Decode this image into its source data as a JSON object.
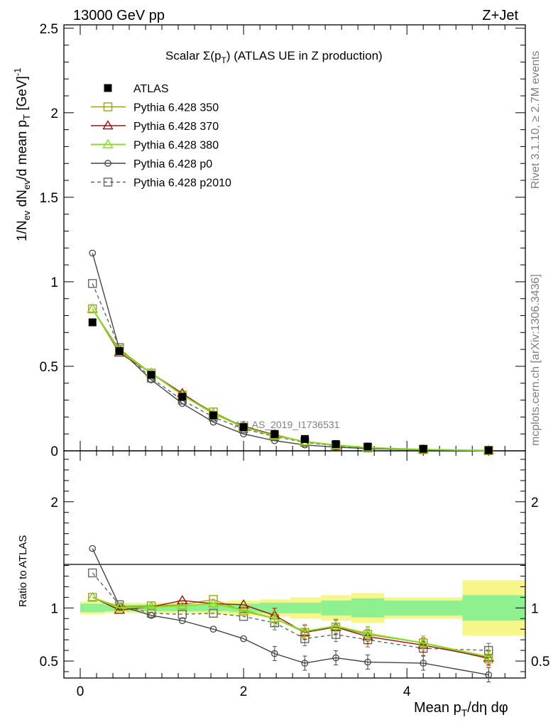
{
  "header": {
    "left": "13000 GeV pp",
    "right": "Z+Jet"
  },
  "side_labels": {
    "rivet": "Rivet 3.1.10, ≥ 2.7M events",
    "mcplots": "mcplots.cern.ch [arXiv:1306.3436]"
  },
  "watermark": "ATLAS_2019_I1736531",
  "chart_data": [
    {
      "type": "line",
      "title": "Scalar Σ(pT) (ATLAS UE in Z production)",
      "ylabel": "1/Nev dNev/d mean pT [GeV]^-1",
      "xlim": [
        -0.2,
        5.45
      ],
      "ylim": [
        0,
        2.52
      ],
      "yticks": [
        0,
        0.5,
        1,
        1.5,
        2,
        2.5
      ],
      "ytick_labels": [
        "0",
        "0.5",
        "1",
        "1.5",
        "2",
        "2.5"
      ],
      "x": [
        0.15,
        0.48,
        0.87,
        1.25,
        1.63,
        2.0,
        2.38,
        2.75,
        3.13,
        3.52,
        4.2,
        5.0
      ],
      "series": [
        {
          "name": "ATLAS",
          "color": "#000000",
          "marker": "filled-square",
          "values": [
            0.76,
            0.59,
            0.45,
            0.32,
            0.21,
            0.14,
            0.1,
            0.07,
            0.04,
            0.025,
            0.012,
            0.004
          ]
        },
        {
          "name": "Pythia 6.428 350",
          "color": "#a0a020",
          "marker": "open-square",
          "dash": false,
          "values": [
            0.84,
            0.6,
            0.46,
            0.33,
            0.23,
            0.14,
            0.09,
            0.054,
            0.033,
            0.019,
            0.008,
            0.002
          ]
        },
        {
          "name": "Pythia 6.428 370",
          "color": "#a01010",
          "marker": "open-triangle",
          "dash": false,
          "values": [
            0.84,
            0.58,
            0.46,
            0.34,
            0.22,
            0.145,
            0.095,
            0.054,
            0.033,
            0.018,
            0.008,
            0.002
          ]
        },
        {
          "name": "Pythia 6.428 380",
          "color": "#88dd22",
          "marker": "open-triangle",
          "dash": false,
          "values": [
            0.84,
            0.59,
            0.46,
            0.33,
            0.22,
            0.14,
            0.09,
            0.055,
            0.034,
            0.019,
            0.008,
            0.002
          ]
        },
        {
          "name": "Pythia 6.428 p0",
          "color": "#444444",
          "marker": "open-circle",
          "dash": false,
          "values": [
            1.17,
            0.6,
            0.42,
            0.28,
            0.17,
            0.1,
            0.06,
            0.035,
            0.022,
            0.013,
            0.006,
            0.0015
          ]
        },
        {
          "name": "Pythia 6.428 p2010",
          "color": "#666666",
          "marker": "open-square",
          "dash": true,
          "values": [
            0.99,
            0.61,
            0.43,
            0.3,
            0.2,
            0.13,
            0.085,
            0.05,
            0.03,
            0.017,
            0.0075,
            0.002
          ]
        }
      ]
    },
    {
      "type": "line",
      "ylabel": "Ratio to ATLAS",
      "xlabel": "Mean pT/dη dφ",
      "xlim": [
        -0.2,
        5.45
      ],
      "ylim": [
        0.34,
        2.48
      ],
      "xticks": [
        0,
        2,
        4
      ],
      "xtick_labels": [
        "0",
        "2",
        "4"
      ],
      "yticks": [
        0.5,
        1,
        2
      ],
      "ytick_labels": [
        "0.5",
        "1",
        "2"
      ],
      "x": [
        0.15,
        0.48,
        0.87,
        1.25,
        1.63,
        2.0,
        2.38,
        2.75,
        3.13,
        3.52,
        4.2,
        5.0
      ],
      "bands": {
        "edges": [
          0,
          0.3,
          0.67,
          1.07,
          1.45,
          1.82,
          2.2,
          2.57,
          2.95,
          3.32,
          3.72,
          4.68,
          5.45
        ],
        "green": [
          0.04,
          0.03,
          0.03,
          0.03,
          0.03,
          0.04,
          0.05,
          0.05,
          0.07,
          0.09,
          0.07,
          0.12
        ],
        "yellow": [
          0.06,
          0.05,
          0.05,
          0.05,
          0.06,
          0.07,
          0.08,
          0.1,
          0.12,
          0.14,
          0.1,
          0.26
        ]
      },
      "series": [
        {
          "name": "Pythia 6.428 350",
          "values": [
            1.1,
            1.01,
            1.02,
            1.03,
            1.08,
            0.97,
            0.9,
            0.77,
            0.82,
            0.75,
            0.67,
            0.52
          ]
        },
        {
          "name": "Pythia 6.428 370",
          "values": [
            1.1,
            0.98,
            1.01,
            1.07,
            1.04,
            1.03,
            0.93,
            0.77,
            0.82,
            0.73,
            0.65,
            0.53
          ]
        },
        {
          "name": "Pythia 6.428 380",
          "values": [
            1.1,
            1.0,
            1.01,
            1.02,
            1.04,
            0.98,
            0.9,
            0.78,
            0.83,
            0.76,
            0.67,
            0.54
          ]
        },
        {
          "name": "Pythia 6.428 p0",
          "values": [
            1.56,
            1.02,
            0.93,
            0.88,
            0.8,
            0.71,
            0.57,
            0.48,
            0.53,
            0.49,
            0.48,
            0.37
          ]
        },
        {
          "name": "Pythia 6.428 p2010",
          "values": [
            1.33,
            1.03,
            0.95,
            0.94,
            0.95,
            0.92,
            0.86,
            0.71,
            0.75,
            0.7,
            0.62,
            0.6
          ]
        }
      ]
    }
  ]
}
